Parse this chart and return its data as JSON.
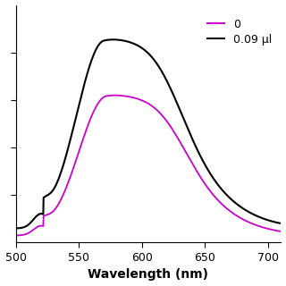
{
  "title": "",
  "xlabel": "Wavelength (nm)",
  "ylabel": "",
  "xlim": [
    500,
    710
  ],
  "xticks": [
    500,
    550,
    600,
    650,
    700
  ],
  "background_color": "#ffffff",
  "legend_entries": [
    "0",
    "0.09 μl"
  ],
  "legend_colors": [
    "#cc00cc",
    "#000000"
  ],
  "figsize": [
    3.2,
    3.2
  ],
  "dpi": 100
}
